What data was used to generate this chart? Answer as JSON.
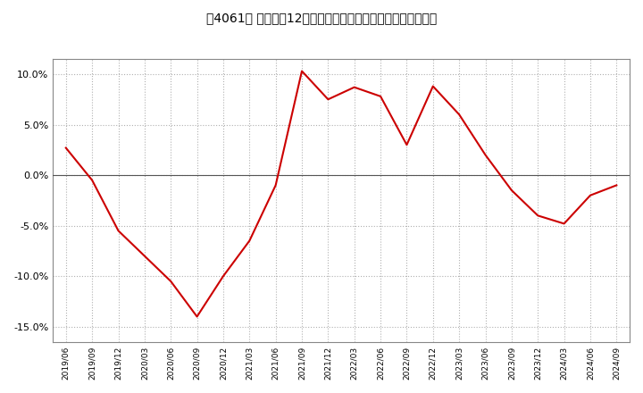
{
  "title": "［4061］ 売上高の12か月移動合計の対前年同期増減率の推移",
  "line_color": "#cc0000",
  "background_color": "#ffffff",
  "plot_bg_color": "#ffffff",
  "grid_color": "#b0b0b0",
  "zero_line_color": "#555555",
  "ylim": [
    -0.165,
    0.115
  ],
  "yticks": [
    -0.15,
    -0.1,
    -0.05,
    0.0,
    0.05,
    0.1
  ],
  "dates": [
    "2019/06",
    "2019/09",
    "2019/12",
    "2020/03",
    "2020/06",
    "2020/09",
    "2020/12",
    "2021/03",
    "2021/06",
    "2021/09",
    "2021/12",
    "2022/03",
    "2022/06",
    "2022/09",
    "2022/12",
    "2023/03",
    "2023/06",
    "2023/09",
    "2023/12",
    "2024/03",
    "2024/06",
    "2024/09"
  ],
  "values": [
    0.027,
    -0.005,
    -0.055,
    -0.08,
    -0.105,
    -0.14,
    -0.1,
    -0.065,
    -0.01,
    0.103,
    0.075,
    0.087,
    0.078,
    0.03,
    0.088,
    0.06,
    0.02,
    -0.015,
    -0.04,
    -0.048,
    -0.02,
    -0.01
  ]
}
